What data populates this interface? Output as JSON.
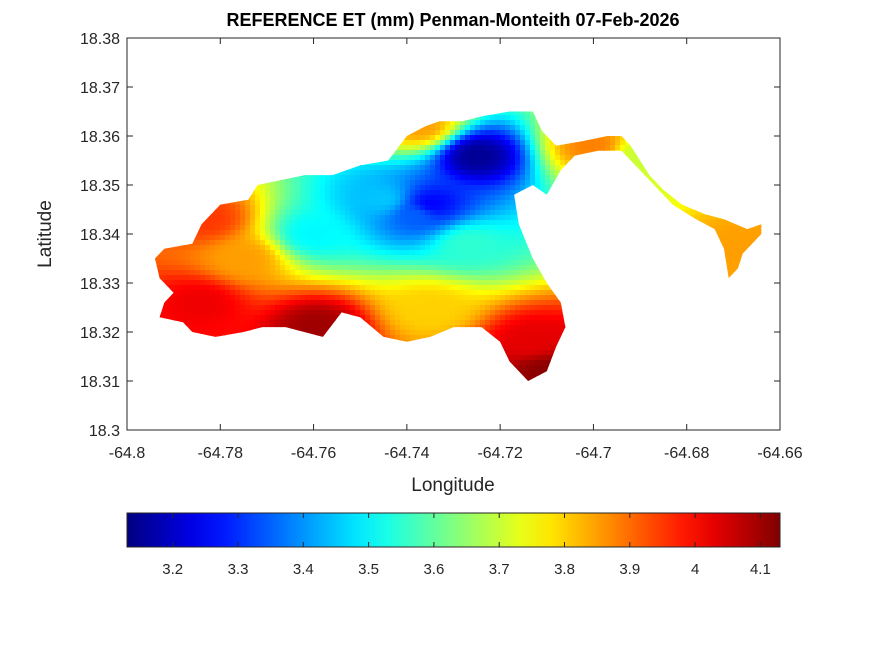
{
  "chart_data": {
    "type": "heatmap",
    "title": "REFERENCE ET (mm) Penman-Monteith 07-Feb-2026",
    "xlabel": "Longitude",
    "ylabel": "Latitude",
    "xlim": [
      -64.8,
      -64.66
    ],
    "ylim": [
      18.3,
      18.38
    ],
    "x_ticks": [
      -64.8,
      -64.78,
      -64.76,
      -64.74,
      -64.72,
      -64.7,
      -64.68,
      -64.66
    ],
    "x_tick_labels": [
      "-64.8",
      "-64.78",
      "-64.76",
      "-64.74",
      "-64.72",
      "-64.7",
      "-64.68",
      "-64.66"
    ],
    "y_ticks": [
      18.3,
      18.31,
      18.32,
      18.33,
      18.34,
      18.35,
      18.36,
      18.37,
      18.38
    ],
    "y_tick_labels": [
      "18.3",
      "18.31",
      "18.32",
      "18.33",
      "18.34",
      "18.35",
      "18.36",
      "18.37",
      "18.38"
    ],
    "grid": false,
    "colormap": "jet",
    "colorbar": {
      "orientation": "horizontal",
      "location": "bottom",
      "range": [
        3.13,
        4.13
      ],
      "ticks": [
        3.2,
        3.3,
        3.4,
        3.5,
        3.6,
        3.7,
        3.8,
        3.9,
        4.0,
        4.1
      ],
      "tick_labels": [
        "3.2",
        "3.3",
        "3.4",
        "3.5",
        "3.6",
        "3.7",
        "3.8",
        "3.9",
        "4",
        "4.1"
      ]
    },
    "island_outline_lonlat": [
      [
        -64.792,
        18.337
      ],
      [
        -64.786,
        18.338
      ],
      [
        -64.784,
        18.342
      ],
      [
        -64.78,
        18.346
      ],
      [
        -64.774,
        18.347
      ],
      [
        -64.772,
        18.35
      ],
      [
        -64.762,
        18.352
      ],
      [
        -64.756,
        18.352
      ],
      [
        -64.75,
        18.354
      ],
      [
        -64.744,
        18.355
      ],
      [
        -64.74,
        18.36
      ],
      [
        -64.736,
        18.362
      ],
      [
        -64.733,
        18.363
      ],
      [
        -64.728,
        18.363
      ],
      [
        -64.724,
        18.364
      ],
      [
        -64.718,
        18.365
      ],
      [
        -64.713,
        18.365
      ],
      [
        -64.711,
        18.361
      ],
      [
        -64.708,
        18.358
      ],
      [
        -64.702,
        18.359
      ],
      [
        -64.697,
        18.36
      ],
      [
        -64.694,
        18.36
      ],
      [
        -64.692,
        18.358
      ],
      [
        -64.69,
        18.355
      ],
      [
        -64.688,
        18.352
      ],
      [
        -64.685,
        18.349
      ],
      [
        -64.681,
        18.346
      ],
      [
        -64.676,
        18.344
      ],
      [
        -64.672,
        18.343
      ],
      [
        -64.667,
        18.341
      ],
      [
        -64.664,
        18.342
      ],
      [
        -64.664,
        18.34
      ],
      [
        -64.668,
        18.336
      ],
      [
        -64.669,
        18.333
      ],
      [
        -64.671,
        18.331
      ],
      [
        -64.672,
        18.337
      ],
      [
        -64.674,
        18.341
      ],
      [
        -64.678,
        18.343
      ],
      [
        -64.683,
        18.346
      ],
      [
        -64.687,
        18.35
      ],
      [
        -64.691,
        18.354
      ],
      [
        -64.694,
        18.357
      ],
      [
        -64.699,
        18.357
      ],
      [
        -64.704,
        18.356
      ],
      [
        -64.707,
        18.353
      ],
      [
        -64.71,
        18.348
      ],
      [
        -64.713,
        18.35
      ],
      [
        -64.717,
        18.348
      ],
      [
        -64.716,
        18.342
      ],
      [
        -64.713,
        18.335
      ],
      [
        -64.71,
        18.33
      ],
      [
        -64.707,
        18.326
      ],
      [
        -64.706,
        18.321
      ],
      [
        -64.708,
        18.317
      ],
      [
        -64.71,
        18.312
      ],
      [
        -64.714,
        18.31
      ],
      [
        -64.718,
        18.314
      ],
      [
        -64.72,
        18.318
      ],
      [
        -64.724,
        18.321
      ],
      [
        -64.73,
        18.321
      ],
      [
        -64.735,
        18.319
      ],
      [
        -64.74,
        18.318
      ],
      [
        -64.745,
        18.319
      ],
      [
        -64.75,
        18.323
      ],
      [
        -64.754,
        18.324
      ],
      [
        -64.758,
        18.319
      ],
      [
        -64.762,
        18.32
      ],
      [
        -64.766,
        18.321
      ],
      [
        -64.771,
        18.321
      ],
      [
        -64.775,
        18.32
      ],
      [
        -64.781,
        18.319
      ],
      [
        -64.786,
        18.32
      ],
      [
        -64.788,
        18.322
      ],
      [
        -64.793,
        18.323
      ],
      [
        -64.792,
        18.326
      ],
      [
        -64.79,
        18.328
      ],
      [
        -64.793,
        18.331
      ],
      [
        -64.794,
        18.335
      ]
    ],
    "value_blobs": [
      {
        "lon": -64.775,
        "lat": 18.335,
        "value": 3.85
      },
      {
        "lon": -64.745,
        "lat": 18.347,
        "value": 3.45
      },
      {
        "lon": -64.738,
        "lat": 18.344,
        "value": 3.35
      },
      {
        "lon": -64.725,
        "lat": 18.356,
        "value": 3.15
      },
      {
        "lon": -64.735,
        "lat": 18.346,
        "value": 3.25
      },
      {
        "lon": -64.76,
        "lat": 18.34,
        "value": 3.5
      },
      {
        "lon": -64.727,
        "lat": 18.338,
        "value": 3.55
      },
      {
        "lon": -64.784,
        "lat": 18.326,
        "value": 4.02
      },
      {
        "lon": -64.759,
        "lat": 18.321,
        "value": 4.1
      },
      {
        "lon": -64.713,
        "lat": 18.318,
        "value": 4.03
      },
      {
        "lon": -64.71,
        "lat": 18.312,
        "value": 4.12
      },
      {
        "lon": -64.783,
        "lat": 18.343,
        "value": 3.95
      },
      {
        "lon": -64.737,
        "lat": 18.362,
        "value": 3.85
      },
      {
        "lon": -64.7,
        "lat": 18.358,
        "value": 3.88
      },
      {
        "lon": -64.69,
        "lat": 18.356,
        "value": 3.7
      },
      {
        "lon": -64.668,
        "lat": 18.337,
        "value": 3.85
      },
      {
        "lon": -64.735,
        "lat": 18.325,
        "value": 3.8
      }
    ]
  }
}
